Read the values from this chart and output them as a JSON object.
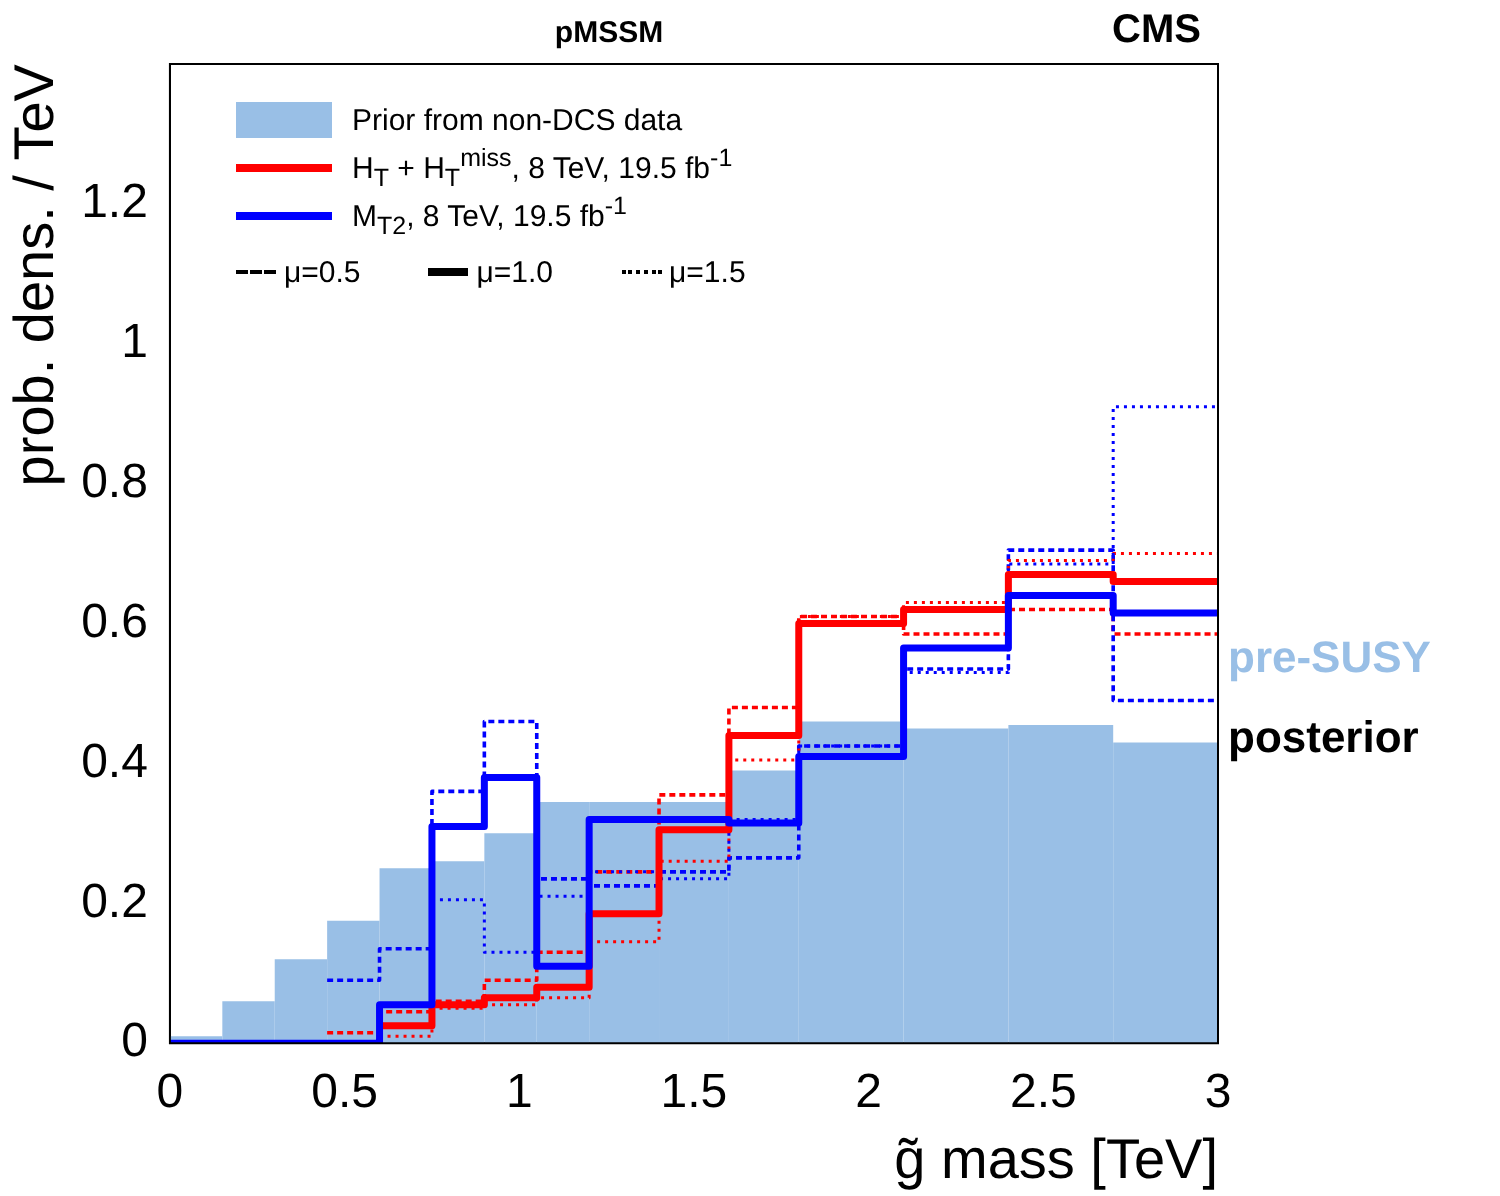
{
  "chart_data": {
    "type": "histogram",
    "title": "pMSSM",
    "xlabel": "g̃ mass [TeV]",
    "ylabel": "prob. dens. / TeV",
    "bins": [
      0,
      0.15,
      0.3,
      0.45,
      0.6,
      0.75,
      0.9,
      1.05,
      1.2,
      1.4,
      1.6,
      1.8,
      2.1,
      2.4,
      2.7,
      3.0
    ],
    "series": [
      {
        "type": "histogram",
        "name": "Prior from non-DCS data",
        "color": "#99bfe6",
        "values": [
          0.01,
          0.06,
          0.12,
          0.175,
          0.25,
          0.26,
          0.3,
          0.345,
          0.345,
          0.345,
          0.39,
          0.46,
          0.45,
          0.455,
          0.43
        ]
      },
      {
        "type": "step",
        "name": "H$_{T}$ + H$_{T}$$^{miss}$, 8 TeV, 19.5 fb$^{-1}$",
        "color": "#ff0000",
        "line_style": "solid",
        "x": [
          0.6,
          0.75,
          0.9,
          1.05,
          1.2,
          1.4,
          1.6,
          1.8,
          2.1,
          2.4,
          2.7,
          3.0
        ],
        "values": [
          0.025,
          0.055,
          0.065,
          0.08,
          0.185,
          0.305,
          0.44,
          0.6,
          0.62,
          0.67,
          0.66,
          0.66
        ]
      },
      {
        "type": "step",
        "name": "M$_{T2}$, 8 TeV, 19.5 fb$^{-1}$",
        "color": "#0000ff",
        "line_style": "solid",
        "x": [
          0,
          0.15,
          0.3,
          0.45,
          0.6,
          0.75,
          0.9,
          1.05,
          1.2,
          1.4,
          1.6,
          1.8,
          2.1,
          2.4,
          2.7,
          3.0
        ],
        "values": [
          0,
          0,
          0,
          0,
          0.055,
          0.31,
          0.38,
          0.11,
          0.32,
          0.32,
          0.315,
          0.41,
          0.565,
          0.64,
          0.615,
          0.615
        ]
      },
      {
        "type": "step",
        "color": "#ff0000",
        "line_style": "dashed",
        "x": [
          0.45,
          0.6,
          0.75,
          0.9,
          1.05,
          1.2,
          1.4,
          1.6,
          1.8,
          2.1,
          2.4,
          2.7,
          3.0
        ],
        "values": [
          0.015,
          0.045,
          0.06,
          0.09,
          0.13,
          0.245,
          0.355,
          0.48,
          0.61,
          0.585,
          0.62,
          0.585,
          0.585
        ]
      },
      {
        "type": "step",
        "color": "#0000ff",
        "line_style": "dashed",
        "x": [
          0.45,
          0.6,
          0.75,
          0.9,
          1.05,
          1.2,
          1.4,
          1.6,
          1.8,
          2.1,
          2.4,
          2.7,
          3.0
        ],
        "values": [
          0.09,
          0.135,
          0.36,
          0.46,
          0.235,
          0.225,
          0.245,
          0.265,
          0.425,
          0.535,
          0.705,
          0.49,
          0.49
        ]
      },
      {
        "type": "step",
        "color": "#ff0000",
        "line_style": "dotted",
        "x": [
          0.6,
          0.75,
          0.9,
          1.05,
          1.2,
          1.4,
          1.6,
          1.8,
          2.1,
          2.4,
          2.7,
          3.0
        ],
        "values": [
          0.01,
          0.05,
          0.055,
          0.065,
          0.145,
          0.26,
          0.405,
          0.61,
          0.63,
          0.69,
          0.7,
          0.7
        ]
      },
      {
        "type": "step",
        "color": "#0000ff",
        "line_style": "dotted",
        "x": [
          0.75,
          0.9,
          1.05,
          1.2,
          1.4,
          1.6,
          1.8,
          2.1,
          2.4,
          2.7,
          3.0
        ],
        "values": [
          0.205,
          0.13,
          0.21,
          0.245,
          0.235,
          0.32,
          0.425,
          0.53,
          0.685,
          0.91,
          0.91
        ]
      }
    ],
    "xlim": [
      0,
      3
    ],
    "xticks": [
      0,
      0.5,
      1,
      1.5,
      2,
      2.5,
      3
    ],
    "ylim": [
      0,
      1.4
    ],
    "yticks": [
      0,
      0.2,
      0.4,
      0.6,
      0.8,
      1,
      1.2
    ],
    "grid": false,
    "legend": "top left",
    "annotations": [
      "μ=0.5",
      "μ=1.0",
      "μ=1.5",
      "CMS",
      "pre-SUSY",
      "posterior"
    ]
  }
}
